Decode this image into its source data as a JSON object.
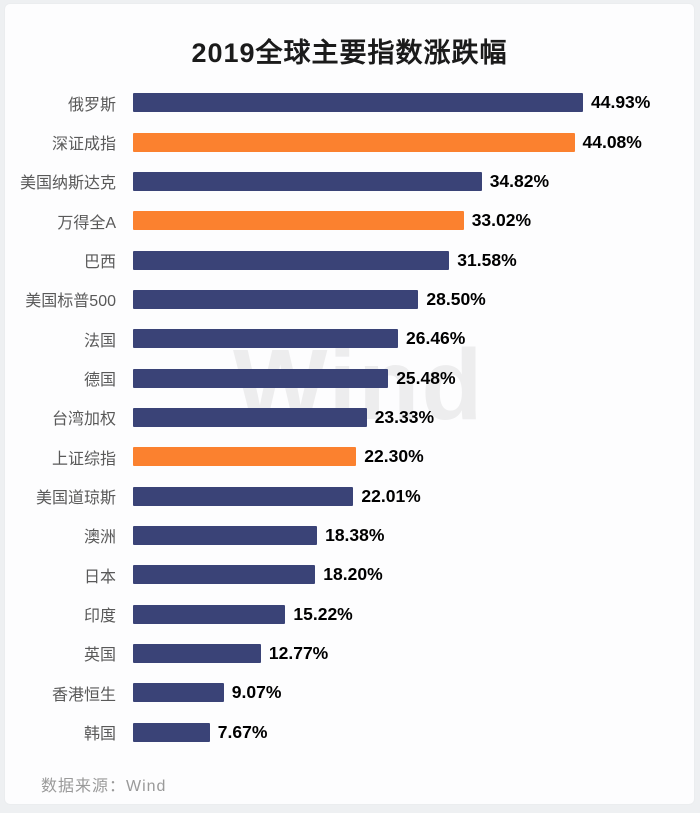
{
  "title": "2019全球主要指数涨跌幅",
  "watermark": "Wind",
  "footer": {
    "source_label": "数据来源：Wind"
  },
  "colors": {
    "bar_default": "#3a4377",
    "bar_highlight": "#fb812f",
    "title_text": "#1b1b1b",
    "category_label": "#595959",
    "value_label": "#000000",
    "watermark_text": "#ededee",
    "footer_text": "#9a9a9a",
    "card_background": "#fdfdfe",
    "page_background": "#eef0f2"
  },
  "chart_data": {
    "type": "bar",
    "orientation": "horizontal",
    "title": "2019全球主要指数涨跌幅",
    "categories": [
      "俄罗斯",
      "深证成指",
      "美国纳斯达克",
      "万得全A",
      "巴西",
      "美国标普500",
      "法国",
      "德国",
      "台湾加权",
      "上证综指",
      "美国道琼斯",
      "澳洲",
      "日本",
      "印度",
      "英国",
      "香港恒生",
      "韩国"
    ],
    "values": [
      44.93,
      44.08,
      34.82,
      33.02,
      31.58,
      28.5,
      26.46,
      25.48,
      23.33,
      22.3,
      22.01,
      18.38,
      18.2,
      15.22,
      12.77,
      9.07,
      7.67
    ],
    "value_labels": [
      "44.93%",
      "44.08%",
      "34.82%",
      "33.02%",
      "31.58%",
      "28.50%",
      "26.46%",
      "25.48%",
      "23.33%",
      "22.30%",
      "22.01%",
      "18.38%",
      "18.20%",
      "15.22%",
      "12.77%",
      "9.07%",
      "7.67%"
    ],
    "highlighted_categories": [
      "深证成指",
      "万得全A",
      "上证综指"
    ],
    "unit": "%",
    "xlim": [
      0,
      45
    ],
    "grid": false,
    "legend": "none",
    "sorted": "descending",
    "source": "Wind"
  }
}
